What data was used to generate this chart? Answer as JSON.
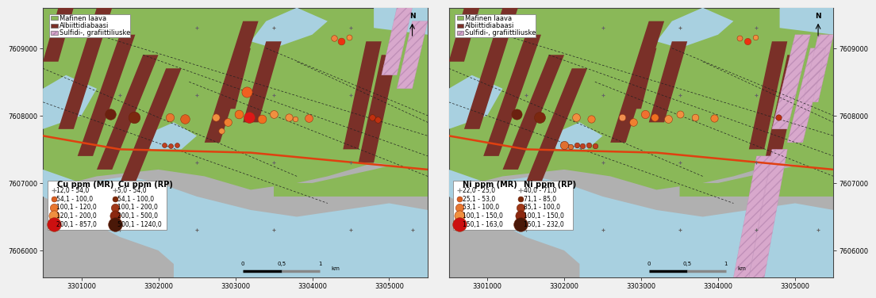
{
  "x_ticks": [
    3301000,
    3302000,
    3303000,
    3304000,
    3305000
  ],
  "y_ticks": [
    7606000,
    7607000,
    7608000,
    7609000
  ],
  "xlim": [
    3300500,
    3305500
  ],
  "ylim": [
    7605600,
    7609600
  ],
  "bg_green": "#8ab858",
  "bg_water": "#a8d0e0",
  "bg_gray": "#b0b0b0",
  "diabaasi_color": "#7a3028",
  "sulfidi_color": "#d8a8cc",
  "fault_orange": "#e04010",
  "tick_fontsize": 6,
  "legend_fontsize": 6,
  "legend_title_fontsize": 7,
  "left_legend": {
    "mr_title": "Cu ppm (MR)",
    "rp_title": "Cu ppm (RP)",
    "mr_entries": [
      {
        "label": "12,0 - 54,0",
        "size": 8,
        "color": "#cccccc",
        "is_cross": true
      },
      {
        "label": "54,1 - 100,0",
        "size": 25,
        "color": "#d86020"
      },
      {
        "label": "100,1 - 120,0",
        "size": 55,
        "color": "#e87830"
      },
      {
        "label": "120,1 - 200,0",
        "size": 90,
        "color": "#f09040"
      },
      {
        "label": "200,1 - 857,0",
        "size": 160,
        "color": "#cc1010"
      }
    ],
    "rp_entries": [
      {
        "label": "5,0 - 54,0",
        "size": 8,
        "color": "#cccccc",
        "is_cross": true
      },
      {
        "label": "54,1 - 100,0",
        "size": 25,
        "color": "#7b2808"
      },
      {
        "label": "100,1 - 200,0",
        "size": 55,
        "color": "#a03818"
      },
      {
        "label": "200,1 - 500,0",
        "size": 90,
        "color": "#8b2810"
      },
      {
        "label": "500,1 - 1240,0",
        "size": 160,
        "color": "#4a1808"
      }
    ]
  },
  "right_legend": {
    "mr_title": "Ni ppm (MR)",
    "rp_title": "Ni ppm (RP)",
    "mr_entries": [
      {
        "label": "22,0 - 25,0",
        "size": 8,
        "color": "#cccccc",
        "is_cross": true
      },
      {
        "label": "25,1 - 53,0",
        "size": 25,
        "color": "#d86020"
      },
      {
        "label": "53,1 - 100,0",
        "size": 55,
        "color": "#e87830"
      },
      {
        "label": "100,1 - 150,0",
        "size": 90,
        "color": "#f09040"
      },
      {
        "label": "150,1 - 163,0",
        "size": 160,
        "color": "#cc1010"
      }
    ],
    "rp_entries": [
      {
        "label": "40,0 - 71,0",
        "size": 8,
        "color": "#cccccc",
        "is_cross": true
      },
      {
        "label": "71,1 - 85,0",
        "size": 25,
        "color": "#7b2808"
      },
      {
        "label": "85,1 - 100,0",
        "size": 55,
        "color": "#a03818"
      },
      {
        "label": "100,1 - 150,0",
        "size": 90,
        "color": "#8b2810"
      },
      {
        "label": "150,1 - 232,0",
        "size": 160,
        "color": "#4a1808"
      }
    ]
  },
  "geo_legend": [
    {
      "label": "Mafinen laava",
      "color": "#8ab858",
      "hatch": ""
    },
    {
      "label": "Albiittidiabaasi",
      "color": "#7a3028",
      "hatch": ""
    },
    {
      "label": "Sulfidi-, grafiittiliuske",
      "color": "#d8a8cc",
      "hatch": "///"
    }
  ],
  "cu_samples_mr": [
    [
      3302150,
      7607980,
      55,
      "#e87830"
    ],
    [
      3302350,
      7607950,
      70,
      "#e06020"
    ],
    [
      3302750,
      7607980,
      45,
      "#f09040"
    ],
    [
      3302900,
      7607900,
      50,
      "#f08030"
    ],
    [
      3303050,
      7608020,
      60,
      "#f07020"
    ],
    [
      3303180,
      7607970,
      100,
      "#dd1818"
    ],
    [
      3303350,
      7607950,
      60,
      "#f07020"
    ],
    [
      3303500,
      7608020,
      50,
      "#f09040"
    ],
    [
      3303700,
      7607980,
      45,
      "#f09040"
    ],
    [
      3303950,
      7607960,
      50,
      "#f07030"
    ],
    [
      3303150,
      7608350,
      90,
      "#f06020"
    ],
    [
      3304280,
      7609150,
      30,
      "#f08040"
    ],
    [
      3304380,
      7609100,
      40,
      "#ee3010"
    ],
    [
      3304480,
      7609160,
      25,
      "#f09040"
    ],
    [
      3302820,
      7607780,
      28,
      "#f09040"
    ],
    [
      3303780,
      7607950,
      22,
      "#f09040"
    ]
  ],
  "cu_samples_rp": [
    [
      3301380,
      7608020,
      95,
      "#6b2010"
    ],
    [
      3301680,
      7607980,
      110,
      "#7b2810"
    ],
    [
      3302080,
      7607560,
      18,
      "#c04020"
    ],
    [
      3302160,
      7607550,
      18,
      "#c04020"
    ],
    [
      3302240,
      7607565,
      18,
      "#c04020"
    ],
    [
      3304780,
      7607980,
      30,
      "#c03010"
    ],
    [
      3304850,
      7607940,
      30,
      "#c03010"
    ]
  ],
  "ni_samples_mr": [
    [
      3302150,
      7607980,
      50,
      "#f09040"
    ],
    [
      3302350,
      7607950,
      45,
      "#f08030"
    ],
    [
      3302750,
      7607980,
      38,
      "#f09050"
    ],
    [
      3302900,
      7607900,
      48,
      "#f08030"
    ],
    [
      3303050,
      7608020,
      55,
      "#f07030"
    ],
    [
      3303180,
      7607970,
      45,
      "#f07020"
    ],
    [
      3303350,
      7607950,
      50,
      "#f09040"
    ],
    [
      3303500,
      7608020,
      42,
      "#f09040"
    ],
    [
      3303700,
      7607980,
      38,
      "#f09040"
    ],
    [
      3303950,
      7607960,
      45,
      "#f08030"
    ],
    [
      3304280,
      7609150,
      25,
      "#f08040"
    ],
    [
      3304380,
      7609100,
      35,
      "#ee3010"
    ],
    [
      3304480,
      7609160,
      22,
      "#f09040"
    ]
  ],
  "ni_samples_rp": [
    [
      3301380,
      7608020,
      90,
      "#6b2010"
    ],
    [
      3301680,
      7607980,
      100,
      "#7b2810"
    ],
    [
      3302000,
      7607560,
      55,
      "#e07030"
    ],
    [
      3302080,
      7607545,
      22,
      "#e07030"
    ],
    [
      3302160,
      7607560,
      22,
      "#c04020"
    ],
    [
      3302240,
      7607555,
      22,
      "#c04020"
    ],
    [
      3302320,
      7607565,
      22,
      "#c04020"
    ],
    [
      3302400,
      7607555,
      22,
      "#c04020"
    ],
    [
      3304780,
      7607980,
      28,
      "#c03010"
    ]
  ]
}
